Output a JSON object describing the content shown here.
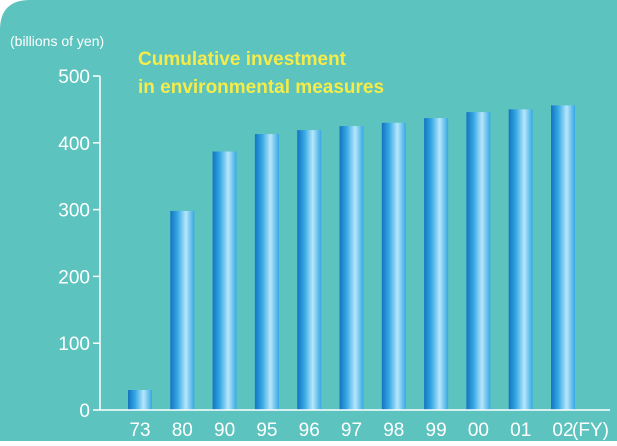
{
  "chart_data": {
    "type": "bar",
    "title_lines": [
      "Cumulative investment",
      "in environmental measures"
    ],
    "ylabel": "(billions of yen)",
    "xlabel": "(FY)",
    "categories": [
      "73",
      "80",
      "90",
      "95",
      "96",
      "97",
      "98",
      "99",
      "00",
      "01",
      "02"
    ],
    "values": [
      30,
      298,
      387,
      413,
      419,
      425,
      430,
      437,
      446,
      450,
      456
    ],
    "ylim": [
      0,
      500
    ],
    "yticks": [
      "0",
      "100",
      "200",
      "300",
      "400",
      "500"
    ],
    "grid": false,
    "legend": "none",
    "colors": {
      "background": "#5cc3be",
      "bar_light": "#b6e6fb",
      "bar_mid": "#35a8e4",
      "bar_dark": "#1473c0",
      "axis": "#ffffff",
      "title": "#f5ec4a"
    }
  }
}
